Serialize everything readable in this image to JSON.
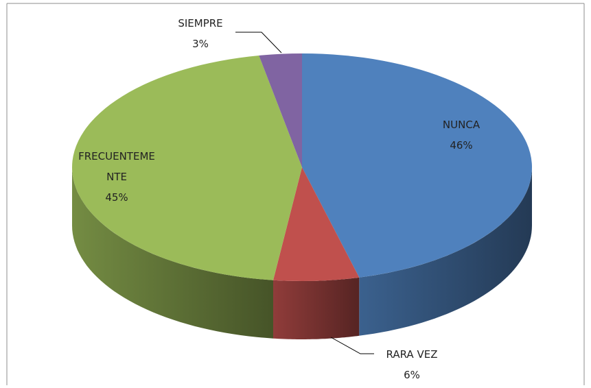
{
  "chart_data": {
    "type": "pie",
    "categories": [
      "NUNCA",
      "RARA VEZ",
      "FRECUENTEMENTE",
      "SIEMPRE"
    ],
    "values": [
      46,
      6,
      45,
      3
    ],
    "value_labels": [
      "46%",
      "6%",
      "45%",
      "3%"
    ],
    "colors": [
      "#4f81bd",
      "#c0504d",
      "#9bbb59",
      "#8064a2"
    ]
  }
}
